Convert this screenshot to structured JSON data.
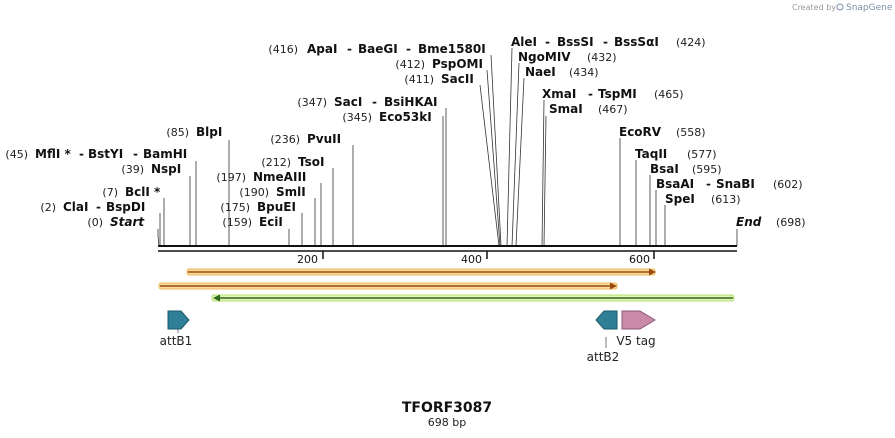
{
  "brand": {
    "created_by": "Created by",
    "name": "SnapGene"
  },
  "sequence": {
    "name": "TFORF3087",
    "length_text": "698 bp",
    "length": 698
  },
  "ruler": {
    "ticks": [
      {
        "value": 200,
        "label": "200"
      },
      {
        "value": 400,
        "label": "400"
      },
      {
        "value": 600,
        "label": "600"
      }
    ]
  },
  "site_rows": [
    {
      "pos": "(0)",
      "names": [
        "Start"
      ],
      "italic": true
    },
    {
      "pos": "(2)",
      "names": [
        "ClaI",
        "BspDI"
      ]
    },
    {
      "pos": "(7)",
      "names": [
        "BclI *"
      ]
    },
    {
      "pos": "(39)",
      "names": [
        "NspI"
      ]
    },
    {
      "pos": "(45)",
      "names": [
        "MflI *",
        "BstYI",
        "BamHI"
      ]
    },
    {
      "pos": "(85)",
      "names": [
        "BlpI"
      ]
    },
    {
      "pos": "(159)",
      "names": [
        "EciI"
      ]
    },
    {
      "pos": "(175)",
      "names": [
        "BpuEI"
      ]
    },
    {
      "pos": "(190)",
      "names": [
        "SmlI"
      ]
    },
    {
      "pos": "(197)",
      "names": [
        "NmeAIII"
      ]
    },
    {
      "pos": "(212)",
      "names": [
        "TsoI"
      ]
    },
    {
      "pos": "(236)",
      "names": [
        "PvuII"
      ]
    },
    {
      "pos": "(345)",
      "names": [
        "Eco53kI"
      ]
    },
    {
      "pos": "(347)",
      "names": [
        "SacI",
        "BsiHKAI"
      ]
    },
    {
      "pos": "(411)",
      "names": [
        "SacII"
      ]
    },
    {
      "pos": "(412)",
      "names": [
        "PspOMI"
      ]
    },
    {
      "pos": "(416)",
      "names": [
        "ApaI",
        "BaeGI",
        "Bme1580I"
      ]
    },
    {
      "pos": "(424)",
      "names": [
        "AleI",
        "BssSI",
        "BssSαI"
      ],
      "pos_right": true
    },
    {
      "pos": "(432)",
      "names": [
        "NgoMIV"
      ],
      "pos_right": true
    },
    {
      "pos": "(434)",
      "names": [
        "NaeI"
      ],
      "pos_right": true
    },
    {
      "pos": "(465)",
      "names": [
        "XmaI",
        "TspMI"
      ],
      "pos_right": true
    },
    {
      "pos": "(467)",
      "names": [
        "SmaI"
      ],
      "pos_right": true
    },
    {
      "pos": "(558)",
      "names": [
        "EcoRV"
      ],
      "pos_right": true
    },
    {
      "pos": "(577)",
      "names": [
        "TaqII"
      ],
      "pos_right": true
    },
    {
      "pos": "(595)",
      "names": [
        "BsaI"
      ],
      "pos_right": true
    },
    {
      "pos": "(602)",
      "names": [
        "BsaAI",
        "SnaBI"
      ],
      "pos_right": true
    },
    {
      "pos": "(613)",
      "names": [
        "SpeI"
      ],
      "pos_right": true
    },
    {
      "pos": "(698)",
      "names": [
        "End"
      ],
      "italic": true,
      "pos_right": true
    }
  ],
  "features": [
    {
      "label": "attB1"
    },
    {
      "label": "attB2"
    },
    {
      "label": "V5 tag"
    }
  ],
  "colors": {
    "orf_orange": "#e8a33d",
    "orf_fill": "#f4d58c",
    "orf_green": "#8fcf3c",
    "orf_green_fill": "#d8f0a8",
    "att": "#2f7f96",
    "v5": "#c88aa8"
  }
}
